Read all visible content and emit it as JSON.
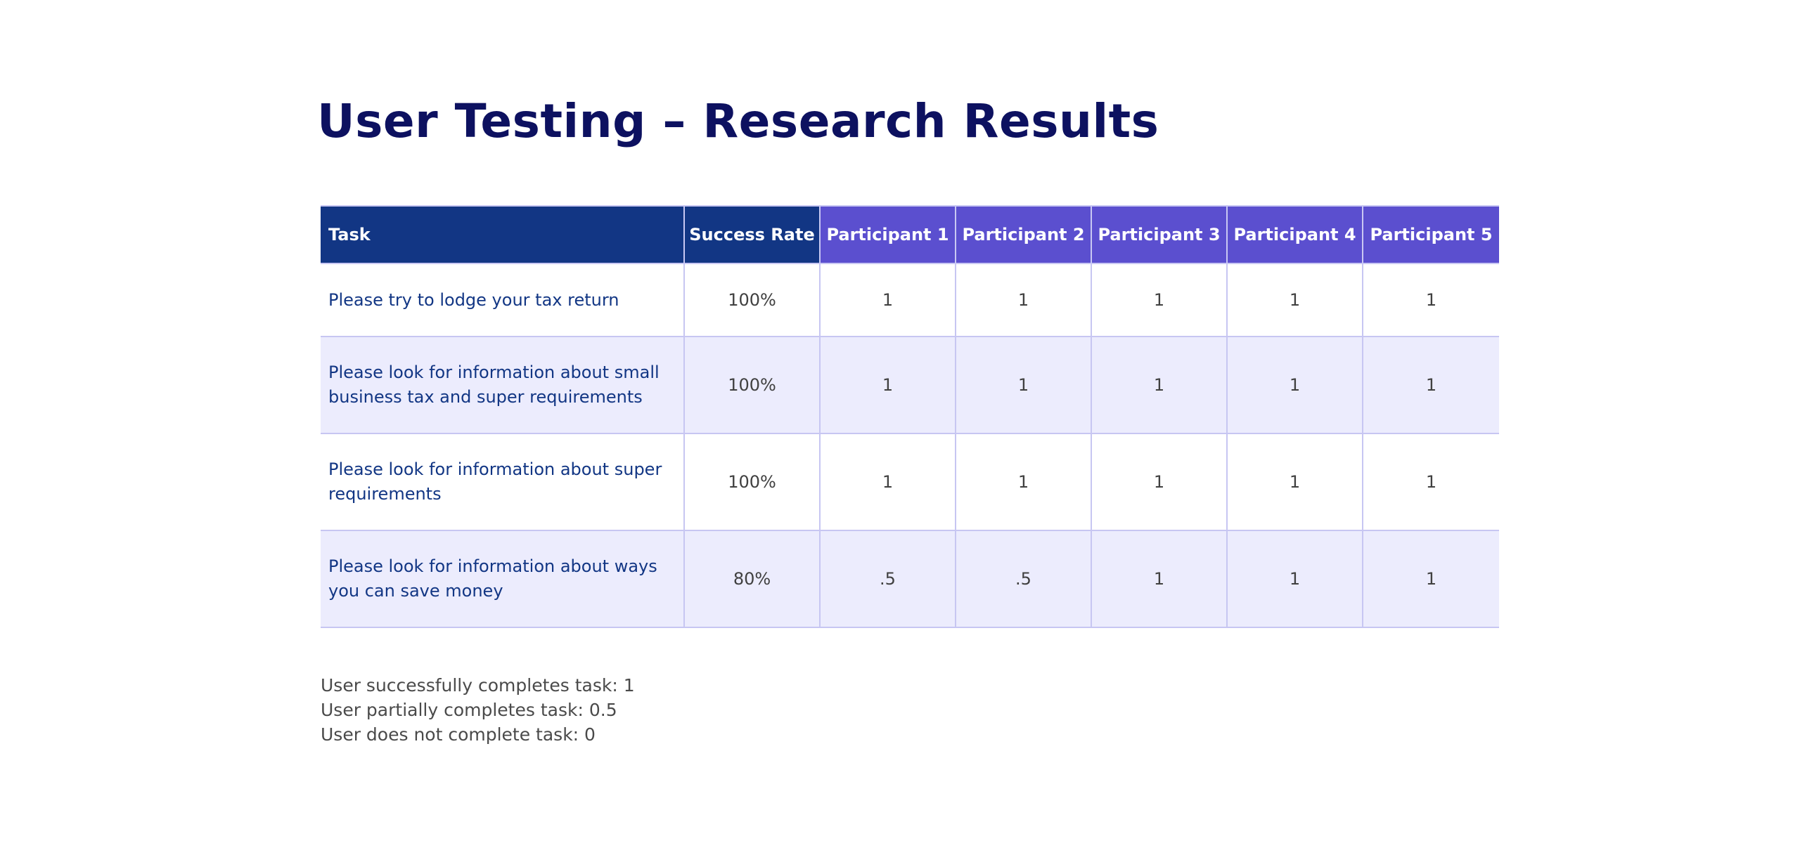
{
  "title": "User Testing – Research Results",
  "table": {
    "headers": {
      "task": "Task",
      "success_rate": "Success Rate",
      "participants": [
        "Participant 1",
        "Participant 2",
        "Participant 3",
        "Participant 4",
        "Participant 5"
      ]
    },
    "rows": [
      {
        "task": "Please try to lodge your tax return",
        "success_rate": "100%",
        "scores": [
          "1",
          "1",
          "1",
          "1",
          "1"
        ]
      },
      {
        "task": "Please look for information about small business tax and super requirements",
        "success_rate": "100%",
        "scores": [
          "1",
          "1",
          "1",
          "1",
          "1"
        ]
      },
      {
        "task": "Please look for information about super requirements",
        "success_rate": "100%",
        "scores": [
          "1",
          "1",
          "1",
          "1",
          "1"
        ]
      },
      {
        "task": "Please look for information about ways you can save money",
        "success_rate": "80%",
        "scores": [
          ".5",
          ".5",
          "1",
          "1",
          "1"
        ]
      }
    ]
  },
  "legend": [
    "User successfully completes task: 1",
    "User partially completes task: 0.5",
    "User does not complete task: 0"
  ],
  "colors": {
    "title": "#0d1160",
    "header_dark": "#123684",
    "header_participant": "#5b4fcf",
    "row_alt": "#ececfd",
    "task_text": "#123684"
  }
}
